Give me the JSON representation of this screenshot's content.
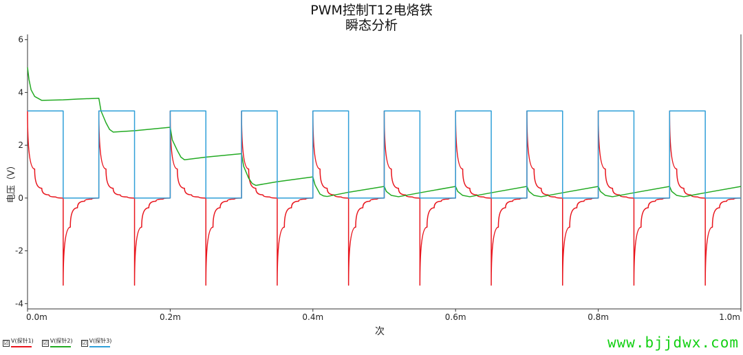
{
  "title_line1": "PWM控制T12电烙铁",
  "title_line2": "瞬态分析",
  "legend_items": [
    {
      "label": "V(探针1)",
      "color": "#e8141c",
      "checked": "☑"
    },
    {
      "label": "V(探针2)",
      "color": "#22aa22",
      "checked": "☑"
    },
    {
      "label": "V(探针3)",
      "color": "#2f9fd8",
      "checked": "☑"
    }
  ],
  "watermark": "www.bjjdwx.com",
  "chart_data": {
    "type": "line",
    "title": "PWM控制T12电烙铁 瞬态分析",
    "xlabel": "次",
    "ylabel": "电压（V）",
    "x_unit": "s",
    "xlim": [
      0,
      0.001
    ],
    "ylim": [
      -4.2,
      6.2
    ],
    "x_ticks": [
      0,
      0.0002,
      0.0004,
      0.0006,
      0.0008,
      0.001
    ],
    "x_tick_labels": [
      "0.0m",
      "0.2m",
      "0.4m",
      "0.6m",
      "0.8m",
      "1.0m"
    ],
    "y_ticks": [
      -4,
      -2,
      0,
      2,
      4,
      6
    ],
    "y_tick_labels": [
      "-4",
      "-2",
      "0",
      "2",
      "4",
      "6"
    ],
    "grid": false,
    "legend_position": "bottom-left",
    "series": [
      {
        "name": "V(探针1)",
        "color": "#e8141c",
        "x": [
          0,
          1e-05,
          2e-05,
          3e-05,
          4e-05,
          5e-05,
          5e-05,
          6e-05,
          7e-05,
          8e-05,
          9e-05,
          0.0001,
          0.0001,
          0.00011,
          0.00012,
          0.00013,
          0.00014,
          0.00015,
          0.00015,
          0.00016,
          0.00017,
          0.00018,
          0.00019,
          0.0002,
          0.0002,
          0.00021,
          0.00022,
          0.00023,
          0.00024,
          0.00025,
          0.00025,
          0.00026,
          0.00027,
          0.00028,
          0.00029,
          0.0003,
          0.0003,
          0.00031,
          0.00032,
          0.00033,
          0.00034,
          0.00035,
          0.00035,
          0.00036,
          0.00037,
          0.00038,
          0.00039,
          0.0004,
          0.0004,
          0.00041,
          0.00042,
          0.00043,
          0.00044,
          0.00045,
          0.00045,
          0.00046,
          0.00047,
          0.00048,
          0.00049,
          0.0005,
          0.0005,
          0.00051,
          0.00052,
          0.00053,
          0.00054,
          0.00055,
          0.00055,
          0.00056,
          0.00057,
          0.00058,
          0.00059,
          0.0006,
          0.0006,
          0.00061,
          0.00062,
          0.00063,
          0.00064,
          0.00065,
          0.00065,
          0.00066,
          0.00067,
          0.00068,
          0.00069,
          0.0007,
          0.0007,
          0.00071,
          0.00072,
          0.00073,
          0.00074,
          0.00075,
          0.00075,
          0.00076,
          0.00077,
          0.00078,
          0.00079,
          0.0008,
          0.0008,
          0.00081,
          0.00082,
          0.00083,
          0.00084,
          0.00085,
          0.00085,
          0.00086,
          0.00087,
          0.00088,
          0.00089,
          0.0009,
          0.0009,
          0.00091,
          0.00092,
          0.00093,
          0.00094,
          0.00095,
          0.00095,
          0.00096,
          0.00097,
          0.00098,
          0.00099,
          0.001
        ],
        "y": [
          3.3,
          1.1,
          0.37,
          0.12,
          0.04,
          0.0,
          -3.3,
          -1.1,
          -0.37,
          -0.12,
          -0.04,
          0.0,
          3.3,
          1.1,
          0.37,
          0.12,
          0.04,
          0.0,
          -3.3,
          -1.1,
          -0.37,
          -0.12,
          -0.04,
          0.0,
          3.3,
          1.1,
          0.37,
          0.12,
          0.04,
          0.0,
          -3.3,
          -1.1,
          -0.37,
          -0.12,
          -0.04,
          0.0,
          3.3,
          1.1,
          0.37,
          0.12,
          0.04,
          0.0,
          -3.3,
          -1.1,
          -0.37,
          -0.12,
          -0.04,
          0.0,
          3.3,
          1.1,
          0.37,
          0.12,
          0.04,
          0.0,
          -3.3,
          -1.1,
          -0.37,
          -0.12,
          -0.04,
          0.0,
          3.3,
          1.1,
          0.37,
          0.12,
          0.04,
          0.0,
          -3.3,
          -1.1,
          -0.37,
          -0.12,
          -0.04,
          0.0,
          3.3,
          1.1,
          0.37,
          0.12,
          0.04,
          0.0,
          -3.3,
          -1.1,
          -0.37,
          -0.12,
          -0.04,
          0.0,
          3.3,
          1.1,
          0.37,
          0.12,
          0.04,
          0.0,
          -3.3,
          -1.1,
          -0.37,
          -0.12,
          -0.04,
          0.0,
          3.3,
          1.1,
          0.37,
          0.12,
          0.04,
          0.0,
          -3.3,
          -1.1,
          -0.37,
          -0.12,
          -0.04,
          0.0,
          3.3,
          1.1,
          0.37,
          0.12,
          0.04,
          0.0,
          -3.3,
          -1.1,
          -0.37,
          -0.12,
          -0.04,
          0.0
        ]
      },
      {
        "name": "V(探针2)",
        "color": "#22aa22",
        "x": [
          0,
          2e-06,
          5e-06,
          1e-05,
          2e-05,
          5e-05,
          7e-05,
          0.0001,
          0.000103,
          0.00011,
          0.000115,
          0.00012,
          0.00015,
          0.0002,
          0.000203,
          0.00021,
          0.000215,
          0.00022,
          0.00025,
          0.0003,
          0.000303,
          0.00031,
          0.000315,
          0.00032,
          0.00035,
          0.0004,
          0.000403,
          0.00041,
          0.000415,
          0.00042,
          0.00045,
          0.0005,
          0.000503,
          0.00051,
          0.00052,
          0.00055,
          0.0006,
          0.000603,
          0.00061,
          0.00062,
          0.00065,
          0.0007,
          0.000703,
          0.00071,
          0.00072,
          0.00075,
          0.0008,
          0.000803,
          0.00081,
          0.00082,
          0.00085,
          0.0009,
          0.000903,
          0.00091,
          0.00092,
          0.00095,
          0.001
        ],
        "y": [
          4.95,
          4.5,
          4.1,
          3.85,
          3.7,
          3.72,
          3.75,
          3.78,
          3.3,
          2.85,
          2.6,
          2.5,
          2.55,
          2.68,
          2.2,
          1.8,
          1.55,
          1.45,
          1.55,
          1.68,
          1.2,
          0.75,
          0.55,
          0.48,
          0.62,
          0.8,
          0.5,
          0.15,
          0.08,
          0.06,
          0.22,
          0.44,
          0.25,
          0.1,
          0.05,
          0.2,
          0.44,
          0.25,
          0.1,
          0.05,
          0.2,
          0.44,
          0.25,
          0.1,
          0.05,
          0.2,
          0.44,
          0.25,
          0.1,
          0.05,
          0.2,
          0.44,
          0.25,
          0.1,
          0.05,
          0.2,
          0.44
        ]
      },
      {
        "name": "V(探针3)",
        "color": "#2f9fd8",
        "x": [
          0,
          5e-05,
          5e-05,
          0.0001,
          0.0001,
          0.00015,
          0.00015,
          0.0002,
          0.0002,
          0.00025,
          0.00025,
          0.0003,
          0.0003,
          0.00035,
          0.00035,
          0.0004,
          0.0004,
          0.00045,
          0.00045,
          0.0005,
          0.0005,
          0.00055,
          0.00055,
          0.0006,
          0.0006,
          0.00065,
          0.00065,
          0.0007,
          0.0007,
          0.00075,
          0.00075,
          0.0008,
          0.0008,
          0.00085,
          0.00085,
          0.0009,
          0.0009,
          0.00095,
          0.00095,
          0.001
        ],
        "y": [
          3.3,
          3.3,
          0,
          0,
          3.3,
          3.3,
          0,
          0,
          3.3,
          3.3,
          0,
          0,
          3.3,
          3.3,
          0,
          0,
          3.3,
          3.3,
          0,
          0,
          3.3,
          3.3,
          0,
          0,
          3.3,
          3.3,
          0,
          0,
          3.3,
          3.3,
          0,
          0,
          3.3,
          3.3,
          0,
          0,
          3.3,
          3.3,
          0,
          0
        ]
      }
    ]
  }
}
